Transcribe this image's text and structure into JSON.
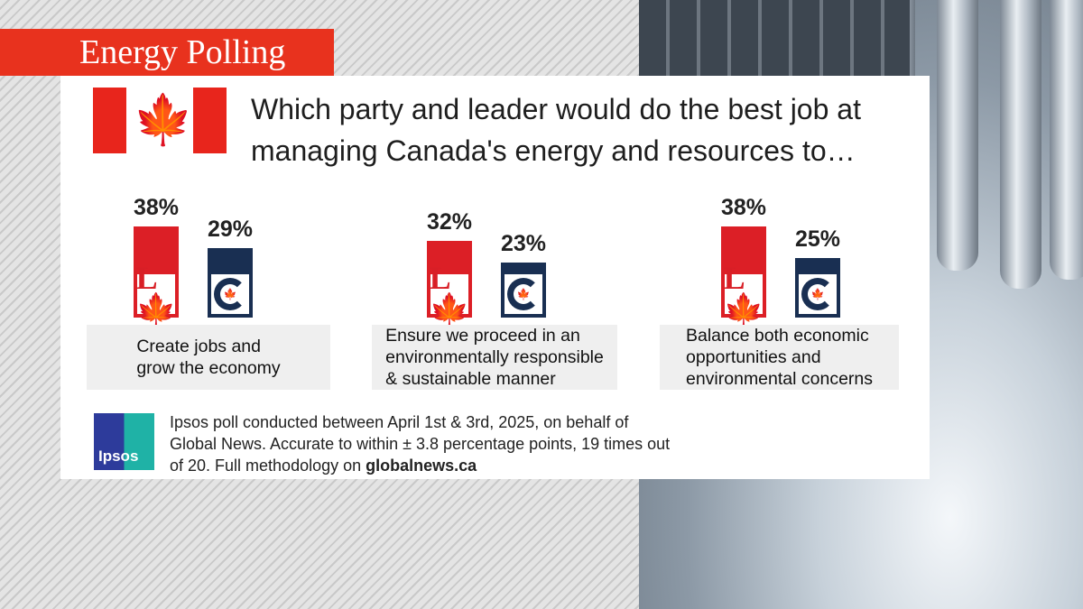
{
  "banner": "Energy Polling",
  "title": "Which party and leader would do the best job at managing Canada's energy and resources to…",
  "colors": {
    "liberal": "#dc1f26",
    "conservative": "#192f52",
    "banner": "#e8321e"
  },
  "chart_data": {
    "type": "bar",
    "categories": [
      "Create jobs and\ngrow the economy",
      "Ensure we proceed in an\nenvironmentally responsible\n& sustainable manner",
      "Balance both economic\nopportunities and\nenvironmental concerns"
    ],
    "series": [
      {
        "party": "liberal",
        "values": [
          38,
          32,
          38
        ]
      },
      {
        "party": "conservative",
        "values": [
          29,
          23,
          25
        ]
      }
    ],
    "data_labels": [
      [
        "38%",
        "29%"
      ],
      [
        "32%",
        "23%"
      ],
      [
        "38%",
        "25%"
      ]
    ]
  },
  "footer": {
    "logo": "Ipsos",
    "text": "Ipsos poll conducted between April 1st & 3rd, 2025, on behalf of Global News. Accurate to within ± 3.8 percentage points, 19 times out of 20.  Full methodology on ",
    "link": "globalnews.ca"
  }
}
